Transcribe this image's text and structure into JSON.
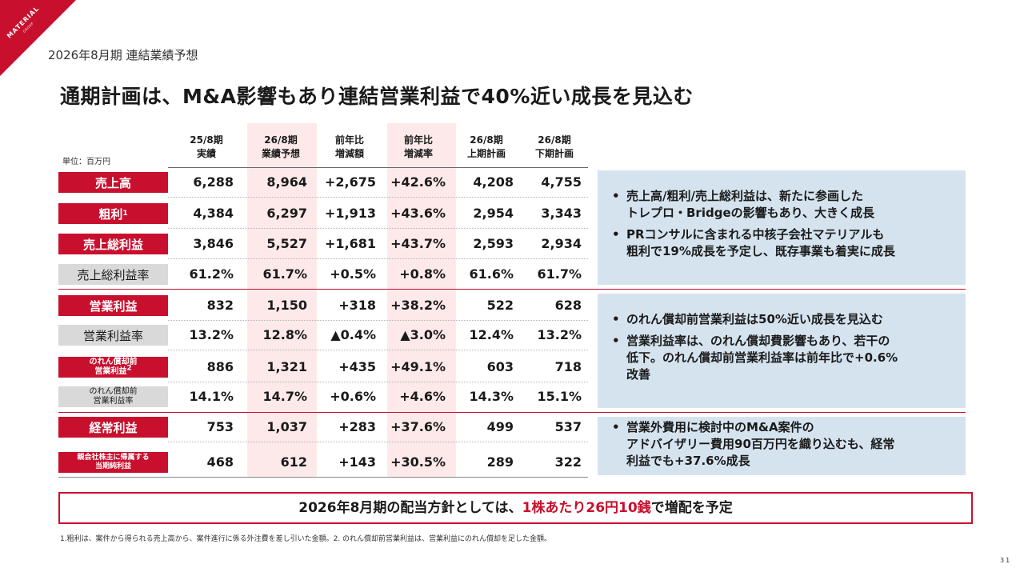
{
  "brand": {
    "logo": "MATERIAL",
    "logo_sub": "GROUP",
    "accent": "#c8102e",
    "note_bg": "#d5e3ef",
    "highlight_col": "#fde9ea"
  },
  "section_title": "2026年8月期 連結業績予想",
  "headline": "通期計画は、M&A影響もあり連結営業利益で40%近い成長を見込む",
  "unit": "単位：百万円",
  "columns": [
    {
      "line1": "25/8期",
      "line2": "実績"
    },
    {
      "line1": "26/8期",
      "line2": "業績予想"
    },
    {
      "line1": "前年比",
      "line2": "増減額"
    },
    {
      "line1": "前年比",
      "line2": "増減率"
    },
    {
      "line1": "26/8期",
      "line2": "上期計画"
    },
    {
      "line1": "26/8期",
      "line2": "下期計画"
    }
  ],
  "rows": [
    {
      "label": "売上高",
      "values": [
        "6,288",
        "8,964",
        "+2,675",
        "+42.6%",
        "4,208",
        "4,755"
      ]
    },
    {
      "label": "粗利",
      "label_sup": "1",
      "values": [
        "4,384",
        "6,297",
        "+1,913",
        "+43.6%",
        "2,954",
        "3,343"
      ]
    },
    {
      "label": "売上総利益",
      "values": [
        "3,846",
        "5,527",
        "+1,681",
        "+43.7%",
        "2,593",
        "2,934"
      ]
    },
    {
      "label": "売上総利益率",
      "values": [
        "61.2%",
        "61.7%",
        "+0.5%",
        "+0.8%",
        "61.6%",
        "61.7%"
      ]
    },
    {
      "label": "営業利益",
      "values": [
        "832",
        "1,150",
        "+318",
        "+38.2%",
        "522",
        "628"
      ]
    },
    {
      "label": "営業利益率",
      "values": [
        "13.2%",
        "12.8%",
        "▲0.4%",
        "▲3.0%",
        "12.4%",
        "13.2%"
      ]
    },
    {
      "label_line1": "のれん償却前",
      "label_line2": "営業利益",
      "label_sup": "2",
      "values": [
        "886",
        "1,321",
        "+435",
        "+49.1%",
        "603",
        "718"
      ]
    },
    {
      "label_line1": "のれん償却前",
      "label_line2": "営業利益率",
      "values": [
        "14.1%",
        "14.7%",
        "+0.6%",
        "+4.6%",
        "14.3%",
        "15.1%"
      ]
    },
    {
      "label": "経常利益",
      "values": [
        "753",
        "1,037",
        "+283",
        "+37.6%",
        "499",
        "537"
      ]
    },
    {
      "label_line1": "親会社株主に帰属する",
      "label_line2": "当期純利益",
      "values": [
        "468",
        "612",
        "+143",
        "+30.5%",
        "289",
        "322"
      ]
    }
  ],
  "notes": [
    {
      "bullets": [
        {
          "line1": "売上高/粗利/売上総利益は、新たに参画した",
          "line2": "トレプロ・Bridgeの影響もあり、大きく成長"
        },
        {
          "line1": "PRコンサルに含まれる中核子会社マテリアルも",
          "line2": "粗利で19%成長を予定し、既存事業も着実に成長"
        }
      ]
    },
    {
      "bullets": [
        {
          "text": "のれん償却前営業利益は50%近い成長を見込む"
        },
        {
          "line1": "営業利益率は、のれん償却費影響もあり、若干の",
          "line2": "低下。のれん償却前営業利益率は前年比で+0.6%",
          "line3": "改善"
        }
      ]
    },
    {
      "bullets": [
        {
          "line1": "営業外費用に検討中のM&A案件の",
          "line2": "アドバイザリー費用90百万円を織り込むも、経常",
          "line3": "利益でも+37.6%成長"
        }
      ]
    }
  ],
  "dividend": {
    "prefix": "2026年8月期の配当方針としては、",
    "emphasis": "1株あたり26円10銭",
    "suffix": "で増配を予定"
  },
  "footnote": "1.粗利は、案件から得られる売上高から、案件進行に係る外注費を差し引いた金額。2. のれん償却前営業利益は、営業利益にのれん償却を足した金額。",
  "page_number": "31"
}
